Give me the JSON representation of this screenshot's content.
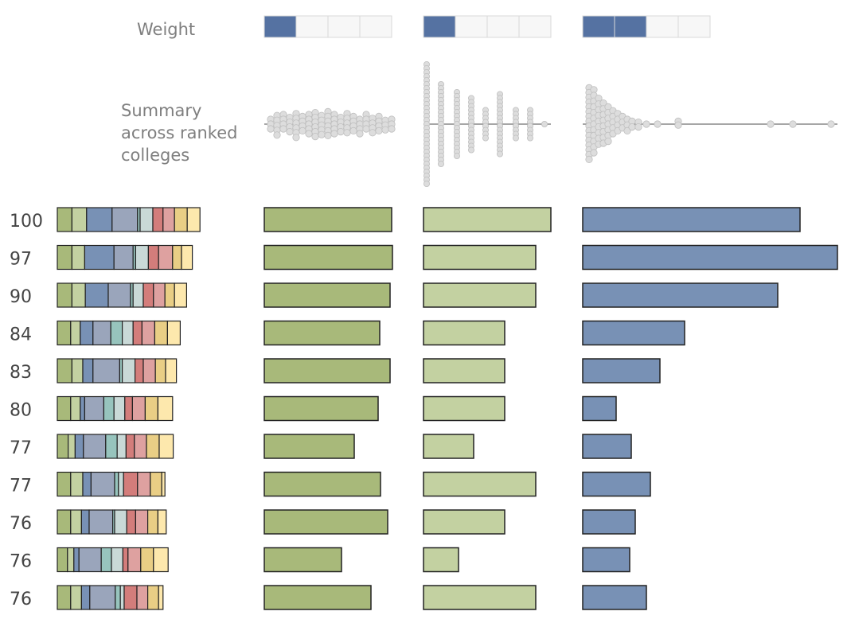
{
  "labels": {
    "weight": "Weight",
    "summary_lines": [
      "Summary",
      "across ranked",
      "colleges"
    ]
  },
  "colors": {
    "weight_filled": "#5572a2",
    "weight_empty": "#f7f7f7",
    "bar_col1": "#a8b97a",
    "bar_col2": "#c3d1a1",
    "bar_col3": "#7891b5",
    "beeswarm_dot": "#dddddd",
    "beeswarm_line": "#888888",
    "segment_palette": [
      "#a8b97a",
      "#c3d1a1",
      "#7891b5",
      "#9aa5bb",
      "#97c4bd",
      "#c9d9d7",
      "#d37d7b",
      "#dea1a0",
      "#e9ce85",
      "#fde8ad"
    ]
  },
  "chart_data": {
    "type": "bar",
    "scores": [
      "100",
      "97",
      "90",
      "84",
      "83",
      "80",
      "77",
      "77",
      "76",
      "76",
      "76"
    ],
    "weights": [
      1,
      1,
      2
    ],
    "weight_max": 4,
    "stacked": {
      "description": "composite score segments per college (relative units)",
      "segments": [
        [
          2.3,
          2.3,
          4.0,
          4.0,
          0.4,
          2.0,
          1.6,
          1.8,
          2.0,
          2.0
        ],
        [
          2.3,
          2.0,
          4.6,
          3.0,
          0.4,
          2.0,
          1.6,
          2.2,
          1.4,
          1.7
        ],
        [
          2.3,
          2.1,
          3.6,
          3.5,
          0.4,
          1.6,
          1.6,
          1.8,
          1.5,
          1.9
        ],
        [
          2.1,
          1.5,
          2.0,
          2.8,
          1.8,
          1.7,
          1.4,
          2.0,
          2.0,
          2.0
        ],
        [
          2.3,
          1.7,
          1.6,
          4.2,
          0.4,
          2.0,
          1.3,
          1.9,
          1.6,
          1.7
        ],
        [
          2.1,
          1.5,
          0.7,
          3.0,
          1.6,
          1.7,
          1.2,
          2.0,
          2.0,
          2.3
        ],
        [
          1.7,
          1.1,
          1.3,
          3.5,
          1.8,
          1.4,
          1.3,
          1.9,
          2.0,
          2.2
        ],
        [
          2.1,
          1.9,
          1.3,
          3.7,
          0.6,
          0.8,
          2.2,
          2.0,
          1.8,
          0.5
        ],
        [
          2.1,
          1.7,
          1.2,
          3.7,
          0.3,
          1.9,
          1.4,
          1.9,
          1.6,
          1.3
        ],
        [
          1.6,
          1.0,
          0.8,
          3.5,
          1.6,
          1.8,
          0.8,
          2.0,
          2.0,
          2.3
        ],
        [
          2.1,
          1.7,
          1.3,
          4.0,
          0.8,
          0.6,
          2.0,
          1.7,
          1.7,
          0.7
        ]
      ]
    },
    "columns": [
      {
        "values": [
          160,
          161,
          158,
          145,
          158,
          143,
          113,
          146,
          155,
          97,
          134
        ],
        "xlim": [
          0,
          160
        ],
        "beeswarm": [
          [
            8,
            -10
          ],
          [
            8,
            0
          ],
          [
            8,
            10
          ],
          [
            16,
            -18
          ],
          [
            16,
            -8
          ],
          [
            16,
            3
          ],
          [
            16,
            13
          ],
          [
            16,
            23
          ],
          [
            24,
            -20
          ],
          [
            24,
            -10
          ],
          [
            24,
            0
          ],
          [
            24,
            10
          ],
          [
            32,
            -14
          ],
          [
            32,
            -4
          ],
          [
            32,
            6
          ],
          [
            32,
            16
          ],
          [
            40,
            -22
          ],
          [
            40,
            -12
          ],
          [
            40,
            -2
          ],
          [
            40,
            8
          ],
          [
            40,
            18
          ],
          [
            40,
            28
          ],
          [
            48,
            -16
          ],
          [
            48,
            -6
          ],
          [
            48,
            4
          ],
          [
            48,
            14
          ],
          [
            56,
            -20
          ],
          [
            56,
            -10
          ],
          [
            56,
            0
          ],
          [
            56,
            10
          ],
          [
            56,
            20
          ],
          [
            64,
            -24
          ],
          [
            64,
            -14
          ],
          [
            64,
            -4
          ],
          [
            64,
            6
          ],
          [
            64,
            16
          ],
          [
            64,
            26
          ],
          [
            72,
            -18
          ],
          [
            72,
            -8
          ],
          [
            72,
            2
          ],
          [
            72,
            12
          ],
          [
            72,
            22
          ],
          [
            80,
            -26
          ],
          [
            80,
            -16
          ],
          [
            80,
            -6
          ],
          [
            80,
            4
          ],
          [
            80,
            14
          ],
          [
            80,
            24
          ],
          [
            88,
            -20
          ],
          [
            88,
            -10
          ],
          [
            88,
            0
          ],
          [
            88,
            10
          ],
          [
            88,
            20
          ],
          [
            96,
            -14
          ],
          [
            96,
            -4
          ],
          [
            96,
            6
          ],
          [
            96,
            16
          ],
          [
            104,
            -22
          ],
          [
            104,
            -12
          ],
          [
            104,
            -2
          ],
          [
            104,
            8
          ],
          [
            104,
            18
          ],
          [
            112,
            -16
          ],
          [
            112,
            -6
          ],
          [
            112,
            4
          ],
          [
            112,
            14
          ],
          [
            120,
            -10
          ],
          [
            120,
            0
          ],
          [
            120,
            10
          ],
          [
            120,
            20
          ],
          [
            128,
            -20
          ],
          [
            128,
            -10
          ],
          [
            128,
            0
          ],
          [
            128,
            10
          ],
          [
            136,
            -12
          ],
          [
            136,
            -2
          ],
          [
            136,
            8
          ],
          [
            136,
            18
          ],
          [
            144,
            -16
          ],
          [
            144,
            -6
          ],
          [
            144,
            4
          ],
          [
            144,
            14
          ],
          [
            152,
            -8
          ],
          [
            152,
            2
          ],
          [
            152,
            12
          ],
          [
            160,
            -10
          ],
          [
            160,
            0
          ],
          [
            160,
            10
          ]
        ]
      },
      {
        "values": [
          160,
          141,
          141,
          102,
          102,
          102,
          63,
          141,
          102,
          44,
          141
        ],
        "xlim": [
          0,
          160
        ],
        "beeswarm_counts": [
          [
            4,
            31
          ],
          [
            22,
            21
          ],
          [
            42,
            17
          ],
          [
            60,
            14
          ],
          [
            78,
            8
          ],
          [
            96,
            16
          ],
          [
            116,
            8
          ],
          [
            134,
            8
          ],
          [
            152,
            1
          ]
        ]
      },
      {
        "values": [
          273,
          320,
          245,
          128,
          97,
          42,
          61,
          85,
          66,
          59,
          80
        ],
        "xlim": [
          0,
          320
        ],
        "beeswarm": [
          [
            8,
            -76
          ],
          [
            8,
            -66
          ],
          [
            8,
            -56
          ],
          [
            8,
            -46
          ],
          [
            8,
            -36
          ],
          [
            8,
            -26
          ],
          [
            8,
            -16
          ],
          [
            8,
            -6
          ],
          [
            8,
            4
          ],
          [
            8,
            14
          ],
          [
            8,
            24
          ],
          [
            8,
            34
          ],
          [
            8,
            44
          ],
          [
            8,
            54
          ],
          [
            8,
            64
          ],
          [
            8,
            74
          ],
          [
            14,
            -72
          ],
          [
            14,
            -60
          ],
          [
            14,
            -48
          ],
          [
            14,
            -36
          ],
          [
            14,
            -24
          ],
          [
            14,
            -12
          ],
          [
            14,
            0
          ],
          [
            14,
            12
          ],
          [
            14,
            24
          ],
          [
            14,
            36
          ],
          [
            14,
            48
          ],
          [
            14,
            60
          ],
          [
            20,
            -54
          ],
          [
            20,
            -42
          ],
          [
            20,
            -30
          ],
          [
            20,
            -18
          ],
          [
            20,
            -6
          ],
          [
            20,
            6
          ],
          [
            20,
            18
          ],
          [
            20,
            30
          ],
          [
            20,
            42
          ],
          [
            26,
            -44
          ],
          [
            26,
            -32
          ],
          [
            26,
            -20
          ],
          [
            26,
            -8
          ],
          [
            26,
            4
          ],
          [
            26,
            16
          ],
          [
            26,
            28
          ],
          [
            26,
            40
          ],
          [
            32,
            -36
          ],
          [
            32,
            -24
          ],
          [
            32,
            -12
          ],
          [
            32,
            0
          ],
          [
            32,
            12
          ],
          [
            32,
            24
          ],
          [
            32,
            36
          ],
          [
            38,
            -28
          ],
          [
            38,
            -16
          ],
          [
            38,
            -4
          ],
          [
            38,
            8
          ],
          [
            38,
            20
          ],
          [
            44,
            -22
          ],
          [
            44,
            -10
          ],
          [
            44,
            2
          ],
          [
            44,
            14
          ],
          [
            50,
            -16
          ],
          [
            50,
            -4
          ],
          [
            50,
            8
          ],
          [
            56,
            -10
          ],
          [
            56,
            2
          ],
          [
            56,
            14
          ],
          [
            62,
            -6
          ],
          [
            62,
            6
          ],
          [
            70,
            -4
          ],
          [
            70,
            6
          ],
          [
            80,
            0
          ],
          [
            94,
            0
          ],
          [
            120,
            -6
          ],
          [
            120,
            2
          ],
          [
            236,
            0
          ],
          [
            264,
            0
          ],
          [
            312,
            0
          ]
        ]
      }
    ]
  }
}
